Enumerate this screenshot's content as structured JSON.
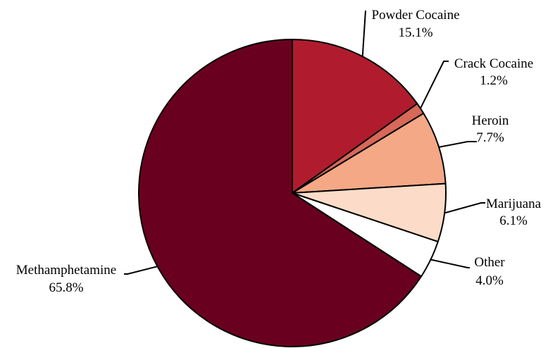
{
  "chart_data": {
    "type": "pie",
    "title": "",
    "slices": [
      {
        "name": "Powder Cocaine",
        "value": 15.1,
        "value_label": "15.1%",
        "color": "#B01C2E"
      },
      {
        "name": "Crack Cocaine",
        "value": 1.2,
        "value_label": "1.2%",
        "color": "#D86858"
      },
      {
        "name": "Heroin",
        "value": 7.7,
        "value_label": "7.7%",
        "color": "#F4A886"
      },
      {
        "name": "Marijuana",
        "value": 6.1,
        "value_label": "6.1%",
        "color": "#FCDCC8"
      },
      {
        "name": "Other",
        "value": 4.0,
        "value_label": "4.0%",
        "color": "#FFFFFF"
      },
      {
        "name": "Methamphetamine",
        "value": 65.8,
        "value_label": "65.8%",
        "color": "#6A0020"
      }
    ],
    "start_angle": "12 o'clock",
    "direction": "clockwise",
    "legend": "none",
    "labels": "outside with leader lines"
  }
}
